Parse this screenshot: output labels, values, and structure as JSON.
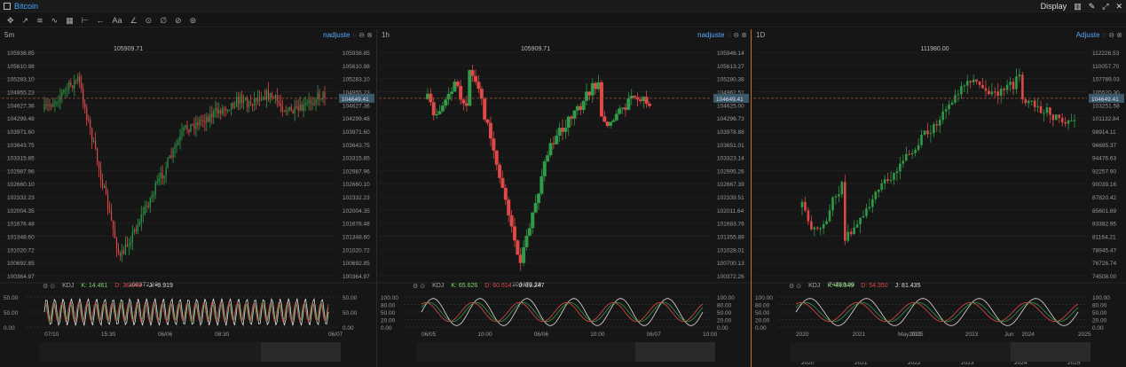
{
  "window": {
    "title": "Bitcoin",
    "display_label": "Display"
  },
  "toolbar": {
    "tools": [
      "✥",
      "↗",
      "≋",
      "∿",
      "▦",
      "⊢",
      "←",
      "Aa",
      "∠",
      "⊙",
      "∅",
      "⊘",
      "⊚"
    ]
  },
  "panels": [
    {
      "timeframe": "5m",
      "adjust": "nadjuste",
      "high_label": "105909.71",
      "low_label": "100372.28",
      "y_ticks": [
        "105938.85",
        "105610.98",
        "105283.10",
        "104955.23",
        "104627.36",
        "104299.48",
        "103971.60",
        "103643.75",
        "103315.85",
        "102987.96",
        "102660.10",
        "102332.23",
        "102004.35",
        "101676.48",
        "101348.60",
        "101020.72",
        "100692.85",
        "100364.97"
      ],
      "last_price": "104649.41",
      "x_ticks": [
        "07/10",
        "15:30",
        "06/06",
        "08:30",
        "",
        "06/07"
      ],
      "kdj": {
        "name": "KDJ",
        "k": "K: 14.461",
        "d": "D: 36.043",
        "j": "J: -9.919"
      },
      "kdj_ticks": [
        "50.00",
        "50.00",
        "0.00"
      ]
    },
    {
      "timeframe": "1h",
      "adjust": "nadjuste",
      "high_label": "105909.71",
      "low_label": "100372.28",
      "y_ticks": [
        "105946.14",
        "105613.27",
        "105280.38",
        "104962.51",
        "104625.00",
        "104296.73",
        "103978.88",
        "103651.01",
        "103323.14",
        "102995.26",
        "102667.39",
        "102339.51",
        "102011.64",
        "101683.76",
        "101355.89",
        "101028.01",
        "100700.13",
        "100372.26"
      ],
      "last_price": "104649.41",
      "x_ticks": [
        "06/05",
        "10:00",
        "06/06",
        "10:00",
        "06/07",
        "10:00"
      ],
      "kdj": {
        "name": "KDJ",
        "k": "K: 65.626",
        "d": "D: 60.614",
        "j": "J: 89.247"
      },
      "kdj_ticks": [
        "100.00",
        "80.00",
        "50.00",
        "20.00",
        "0.00"
      ]
    },
    {
      "timeframe": "1D",
      "adjust": "Adjuste",
      "high_label": "111980.00",
      "low_label": "74508.00",
      "y_ticks": [
        "112226.53",
        "110057.70",
        "107789.03",
        "105520.30",
        "103251.58",
        "101132.84",
        "98914.11",
        "96695.37",
        "94476.63",
        "92257.90",
        "90039.16",
        "87820.42",
        "85601.69",
        "83382.95",
        "81164.21",
        "78945.47",
        "76726.74",
        "74508.00"
      ],
      "last_price": "104649.41",
      "x_ticks": [
        "2020",
        "2021",
        "2022",
        "2023",
        "2024",
        "2025"
      ],
      "x_sub_ticks": [
        "May 2025",
        "Jun"
      ],
      "kdj": {
        "name": "KDJ",
        "k": "K: 43.349",
        "d": "D: 54.350",
        "j": "J: 81.435"
      },
      "kdj_ticks": [
        "100.00",
        "80.00",
        "50.00",
        "20.00",
        "0.00"
      ]
    }
  ],
  "colors": {
    "up": "#2f9a48",
    "down": "#e04848",
    "bg": "#161616",
    "accent": "#4aa3ff",
    "grid": "#222222"
  }
}
